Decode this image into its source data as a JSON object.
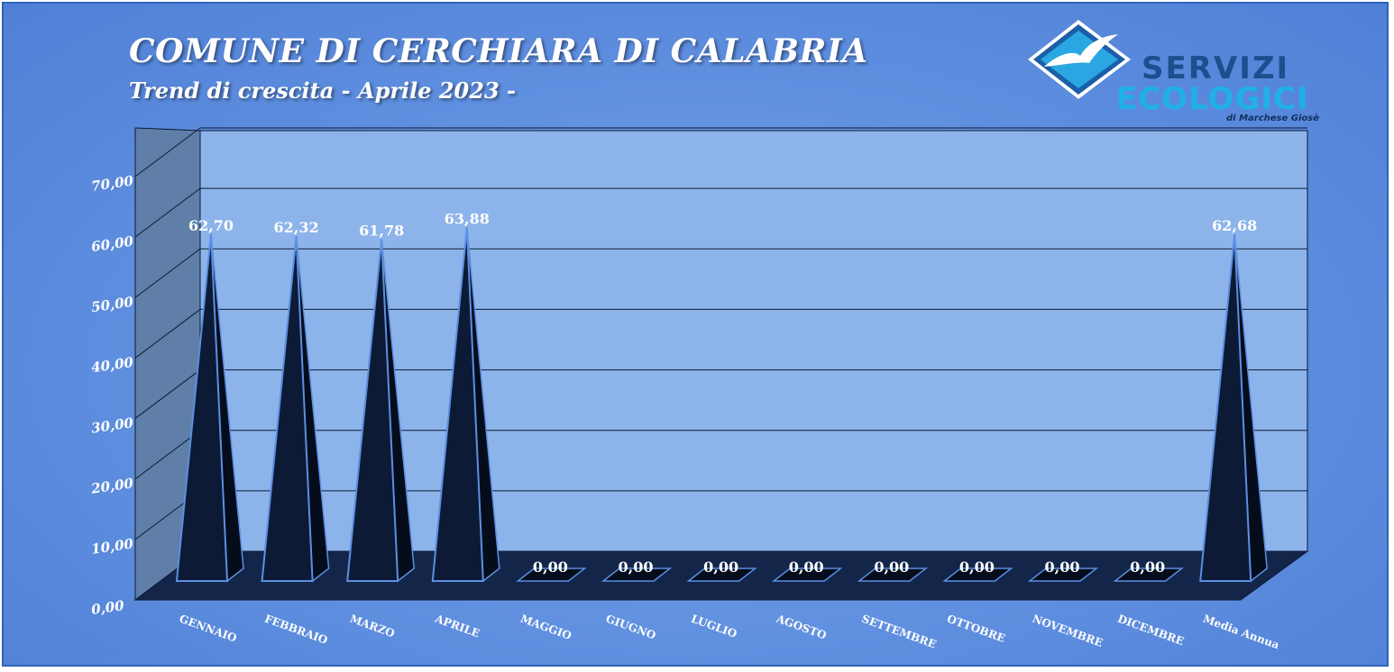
{
  "title": "COMUNE DI CERCHIARA DI CALABRIA",
  "subtitle": "Trend di crescita - Aprile 2023 -",
  "logo": {
    "line1": "SERVIZI",
    "line2": "ECOLOGICI",
    "line3": "di Marchese Giosè",
    "icon": "seagull-diamond-icon",
    "colors": {
      "dark": "#1b4f8e",
      "light": "#20b0e8"
    }
  },
  "chart_data": {
    "type": "bar",
    "bar_shape": "pyramid",
    "categories": [
      "GENNAIO",
      "FEBBRAIO",
      "MARZO",
      "APRILE",
      "MAGGIO",
      "GIUGNO",
      "LUGLIO",
      "AGOSTO",
      "SETTEMBRE",
      "OTTOBRE",
      "NOVEMBRE",
      "DICEMBRE",
      "Media Annua"
    ],
    "values": [
      62.7,
      62.32,
      61.78,
      63.88,
      0,
      0,
      0,
      0,
      0,
      0,
      0,
      0,
      62.68
    ],
    "value_labels": [
      "62,70",
      "62,32",
      "61,78",
      "63,88",
      "0,00",
      "0,00",
      "0,00",
      "0,00",
      "0,00",
      "0,00",
      "0,00",
      "0,00",
      "62,68"
    ],
    "ylim": [
      0,
      70
    ],
    "yticks": [
      "0,00",
      "10,00",
      "20,00",
      "30,00",
      "40,00",
      "50,00",
      "60,00",
      "70,00"
    ],
    "grid": true,
    "legend": "none",
    "colors": {
      "bar": "#0d1a35",
      "bar_edge": "#5b8fe0",
      "wall": "#8cb4ea",
      "floor": "#102040"
    }
  }
}
